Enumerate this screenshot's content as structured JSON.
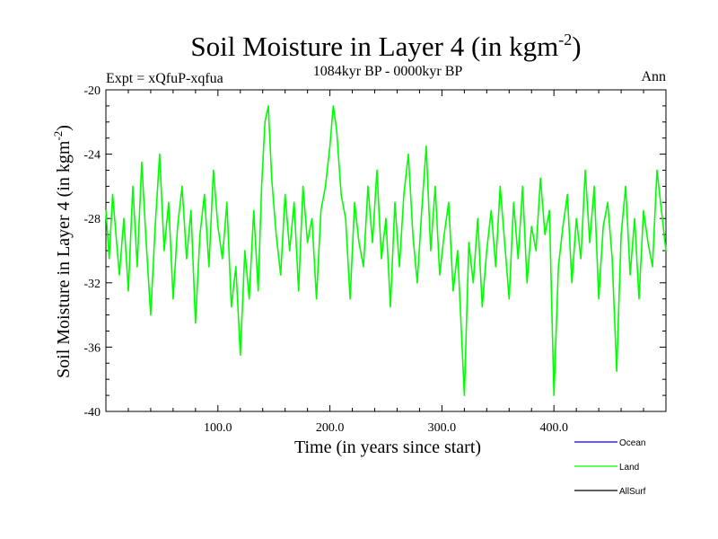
{
  "chart_data": {
    "type": "line",
    "title": "Soil Moisture in Layer 4 (in kgm",
    "title_superscript": "-2",
    "title_close": ")",
    "subtitle": "1084kyr BP - 0000kyr BP",
    "left_label": "Expt = xQfuP-xqfua",
    "right_label": "Ann",
    "xlabel": "Time (in years since start)",
    "ylabel": "Soil Moisture in Layer 4 (in kgm",
    "ylabel_superscript": "-2",
    "ylabel_close": ")",
    "xlim": [
      0,
      500
    ],
    "ylim": [
      -40,
      -20
    ],
    "xticks": [
      100,
      200,
      300,
      400
    ],
    "xtick_labels": [
      "100.0",
      "200.0",
      "300.0",
      "400.0"
    ],
    "yticks": [
      -40,
      -36,
      -32,
      -28,
      -24,
      -20
    ],
    "ytick_labels": [
      "-40",
      "-36",
      "-32",
      "-28",
      "-24",
      "-20"
    ],
    "legend": [
      {
        "name": "Ocean",
        "color": "#0000ff"
      },
      {
        "name": "Land",
        "color": "#00ff00"
      },
      {
        "name": "AllSurf",
        "color": "#000000"
      }
    ],
    "series": [
      {
        "name": "Land",
        "color": "#00ff00",
        "x": [
          0,
          3,
          6,
          9,
          12,
          16,
          20,
          24,
          28,
          32,
          36,
          40,
          44,
          48,
          52,
          56,
          60,
          64,
          68,
          72,
          76,
          80,
          84,
          88,
          92,
          96,
          100,
          104,
          108,
          112,
          116,
          120,
          124,
          128,
          132,
          136,
          139,
          142,
          145,
          148,
          152,
          156,
          160,
          164,
          168,
          172,
          176,
          180,
          184,
          188,
          192,
          196,
          200,
          203,
          206,
          210,
          214,
          218,
          222,
          226,
          230,
          234,
          238,
          242,
          246,
          250,
          254,
          258,
          262,
          266,
          270,
          274,
          278,
          282,
          286,
          290,
          294,
          298,
          302,
          306,
          310,
          314,
          318,
          320,
          324,
          328,
          332,
          336,
          340,
          344,
          348,
          352,
          356,
          360,
          364,
          368,
          372,
          376,
          380,
          384,
          388,
          392,
          396,
          400,
          404,
          408,
          412,
          416,
          420,
          424,
          428,
          432,
          436,
          440,
          444,
          448,
          452,
          456,
          460,
          464,
          468,
          472,
          476,
          480,
          484,
          488,
          492,
          496,
          500
        ],
        "y": [
          -27.5,
          -30.5,
          -26.5,
          -29.0,
          -31.5,
          -28.0,
          -32.5,
          -26.0,
          -31.0,
          -24.5,
          -29.5,
          -34.0,
          -28.5,
          -24.0,
          -30.0,
          -27.0,
          -33.0,
          -28.5,
          -26.0,
          -30.5,
          -27.5,
          -34.5,
          -29.0,
          -26.5,
          -31.0,
          -25.0,
          -28.5,
          -30.5,
          -27.0,
          -33.5,
          -31.0,
          -36.5,
          -30.0,
          -33.0,
          -27.5,
          -32.5,
          -26.0,
          -22.0,
          -21.0,
          -25.5,
          -29.0,
          -31.5,
          -26.5,
          -30.0,
          -27.0,
          -32.5,
          -26.0,
          -29.5,
          -28.0,
          -33.0,
          -27.5,
          -26.0,
          -23.5,
          -21.0,
          -22.5,
          -26.5,
          -28.0,
          -33.0,
          -27.0,
          -29.5,
          -31.0,
          -26.0,
          -29.5,
          -25.0,
          -30.5,
          -28.0,
          -33.5,
          -27.0,
          -31.0,
          -26.5,
          -24.0,
          -29.0,
          -32.0,
          -27.5,
          -23.5,
          -30.0,
          -26.0,
          -31.5,
          -29.0,
          -27.0,
          -32.5,
          -30.0,
          -36.0,
          -39.0,
          -29.5,
          -32.0,
          -28.0,
          -33.5,
          -30.0,
          -27.5,
          -31.0,
          -26.0,
          -29.5,
          -33.0,
          -27.0,
          -30.5,
          -26.0,
          -32.0,
          -28.5,
          -30.0,
          -25.5,
          -29.0,
          -27.5,
          -39.0,
          -31.0,
          -28.5,
          -26.5,
          -32.0,
          -28.0,
          -30.5,
          -25.0,
          -29.5,
          -26.0,
          -33.0,
          -28.5,
          -27.0,
          -30.5,
          -37.5,
          -29.0,
          -26.0,
          -31.5,
          -28.0,
          -33.0,
          -27.5,
          -29.5,
          -31.0,
          -25.0,
          -27.5,
          -30.0
        ]
      }
    ]
  }
}
